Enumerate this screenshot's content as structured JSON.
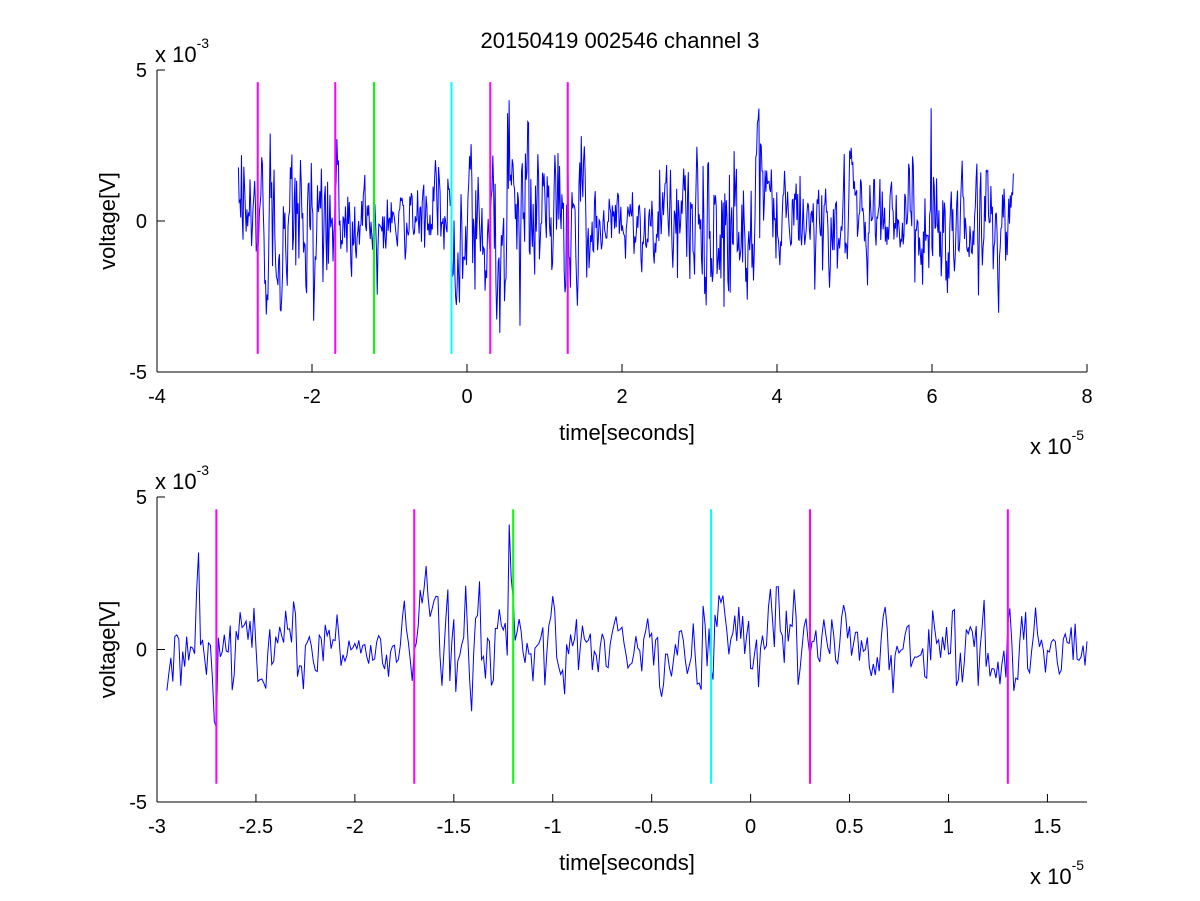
{
  "chart_data": {
    "title": "20150419 002546 channel 3",
    "series_color": "#0000ff",
    "panels": [
      {
        "type": "line",
        "xlabel": "time[seconds]",
        "ylabel": "voltage[V]",
        "xlim": [
          -4,
          8
        ],
        "ylim": [
          -5,
          5
        ],
        "xticks": [
          -4,
          -2,
          0,
          2,
          4,
          6,
          8
        ],
        "xtick_labels": [
          "-4",
          "-2",
          "0",
          "2",
          "4",
          "6",
          "8"
        ],
        "yticks": [
          -5,
          0,
          5
        ],
        "ytick_labels": [
          "-5",
          "0",
          "5"
        ],
        "x_multiplier": {
          "base": "x 10",
          "exp": "-5"
        },
        "y_multiplier": {
          "base": "x 10",
          "exp": "-3"
        },
        "signal": {
          "x_start": -2.95,
          "x_end": 7.05,
          "n_points": 1000,
          "peak_abs": 4.0
        },
        "markers": [
          {
            "x": -2.7,
            "color": "#ff00ff",
            "y_range": [
              -4.4,
              4.6
            ]
          },
          {
            "x": -1.7,
            "color": "#ff00ff",
            "y_range": [
              -4.4,
              4.6
            ]
          },
          {
            "x": -1.2,
            "color": "#00ff00",
            "y_range": [
              -4.4,
              4.6
            ]
          },
          {
            "x": -0.2,
            "color": "#00ffff",
            "y_range": [
              -4.4,
              4.6
            ]
          },
          {
            "x": 0.3,
            "color": "#ff00ff",
            "y_range": [
              -4.4,
              4.6
            ]
          },
          {
            "x": 1.3,
            "color": "#ff00ff",
            "y_range": [
              -4.4,
              4.6
            ]
          }
        ]
      },
      {
        "type": "line",
        "xlabel": "time[seconds]",
        "ylabel": "voltage[V]",
        "xlim": [
          -3.0,
          1.7
        ],
        "ylim": [
          -5,
          5
        ],
        "xticks": [
          -3,
          -2.5,
          -2,
          -1.5,
          -1,
          -0.5,
          0,
          0.5,
          1,
          1.5
        ],
        "xtick_labels": [
          "-3",
          "-2.5",
          "-2",
          "-1.5",
          "-1",
          "-0.5",
          "0",
          "0.5",
          "1",
          "1.5"
        ],
        "yticks": [
          -5,
          0,
          5
        ],
        "ytick_labels": [
          "-5",
          "0",
          "5"
        ],
        "x_multiplier": {
          "base": "x 10",
          "exp": "-5"
        },
        "y_multiplier": {
          "base": "x 10",
          "exp": "-3"
        },
        "signal": {
          "x_start": -2.95,
          "x_end": 1.7,
          "n_points": 466,
          "peak_abs": 4.1
        },
        "markers": [
          {
            "x": -2.7,
            "color": "#ff00ff",
            "y_range": [
              -4.4,
              4.6
            ]
          },
          {
            "x": -1.7,
            "color": "#ff00ff",
            "y_range": [
              -4.4,
              4.6
            ]
          },
          {
            "x": -1.2,
            "color": "#00ff00",
            "y_range": [
              -4.4,
              4.6
            ]
          },
          {
            "x": -0.2,
            "color": "#00ffff",
            "y_range": [
              -4.4,
              4.6
            ]
          },
          {
            "x": 0.3,
            "color": "#ff00ff",
            "y_range": [
              -4.4,
              4.6
            ]
          },
          {
            "x": 1.3,
            "color": "#ff00ff",
            "y_range": [
              -4.4,
              4.6
            ]
          }
        ]
      }
    ]
  }
}
